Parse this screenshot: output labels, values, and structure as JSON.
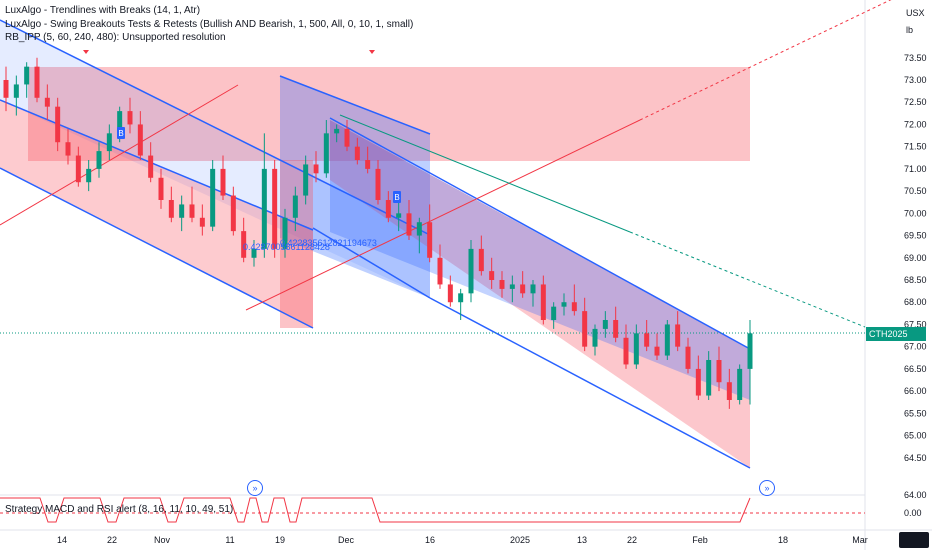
{
  "legend": {
    "line1": "LuxAlgo - Trendlines with Breaks (14, 1, Atr)",
    "line2": "LuxAlgo - Swing Breakouts Tests & Retests (Bullish AND Bearish, 1, 500, All, 0, 10, 1, small)",
    "line3": "RB_IPP (5, 60, 240, 480): Unsupported resolution",
    "line4": "Strategy MACD and RSI alert (8, 16, 11, 10, 49, 51)"
  },
  "axis": {
    "currency": "USX",
    "unit": "lb",
    "price_ticks": [
      "73.50",
      "73.00",
      "72.50",
      "72.00",
      "71.50",
      "71.00",
      "70.50",
      "70.00",
      "69.50",
      "69.00",
      "68.50",
      "68.00",
      "67.50",
      "67.00",
      "66.50",
      "66.00",
      "65.50",
      "65.00",
      "64.50"
    ],
    "lower_ticks": [
      "64.00",
      "0.00"
    ],
    "time_ticks": [
      "14",
      "22",
      "Nov",
      "11",
      "19",
      "Dec",
      "16",
      "2025",
      "13",
      "22",
      "Feb",
      "18",
      "Mar"
    ]
  },
  "price_tag": {
    "symbol": "CTH2025",
    "value": "67.45"
  },
  "annotations": {
    "value1": "0.4287005861128428",
    "value2": "0.422835612821194673",
    "marker_b1": "B",
    "marker_b2": "B"
  },
  "colors": {
    "bull": "#089981",
    "bear": "#f23645",
    "channel_blue": "#2962ff",
    "zone_red": "#f7525f",
    "trend_red": "#f23645",
    "trend_teal": "#089981"
  },
  "chart_data": {
    "type": "candlestick",
    "ylim": [
      64.0,
      73.9
    ],
    "series": [
      {
        "name": "price",
        "ohlc": [
          [
            73.0,
            73.3,
            72.3,
            72.6
          ],
          [
            72.6,
            73.1,
            72.2,
            72.9
          ],
          [
            72.9,
            73.4,
            72.6,
            73.3
          ],
          [
            73.3,
            73.5,
            72.5,
            72.6
          ],
          [
            72.6,
            72.9,
            72.1,
            72.4
          ],
          [
            72.4,
            72.6,
            71.4,
            71.6
          ],
          [
            71.6,
            71.9,
            71.1,
            71.3
          ],
          [
            71.3,
            71.5,
            70.6,
            70.7
          ],
          [
            70.7,
            71.2,
            70.5,
            71.0
          ],
          [
            71.0,
            71.6,
            70.8,
            71.4
          ],
          [
            71.4,
            72.0,
            71.2,
            71.8
          ],
          [
            71.8,
            72.4,
            71.6,
            72.3
          ],
          [
            72.3,
            72.6,
            71.8,
            72.0
          ],
          [
            72.0,
            72.3,
            71.2,
            71.3
          ],
          [
            71.3,
            71.6,
            70.7,
            70.8
          ],
          [
            70.8,
            71.0,
            70.1,
            70.3
          ],
          [
            70.3,
            70.6,
            69.8,
            69.9
          ],
          [
            69.9,
            70.4,
            69.6,
            70.2
          ],
          [
            70.2,
            70.6,
            69.8,
            69.9
          ],
          [
            69.9,
            70.2,
            69.5,
            69.7
          ],
          [
            69.7,
            71.2,
            69.6,
            71.0
          ],
          [
            71.0,
            71.3,
            70.3,
            70.4
          ],
          [
            70.4,
            70.6,
            69.5,
            69.6
          ],
          [
            69.6,
            69.9,
            68.9,
            69.0
          ],
          [
            69.0,
            69.4,
            68.8,
            69.2
          ],
          [
            69.2,
            71.8,
            69.0,
            71.0
          ],
          [
            71.0,
            71.2,
            69.0,
            69.2
          ],
          [
            69.2,
            70.1,
            69.0,
            69.9
          ],
          [
            69.9,
            70.6,
            69.6,
            70.4
          ],
          [
            70.4,
            71.3,
            70.2,
            71.1
          ],
          [
            71.1,
            71.4,
            70.7,
            70.9
          ],
          [
            70.9,
            72.1,
            70.8,
            71.8
          ],
          [
            71.8,
            72.0,
            71.6,
            71.9
          ],
          [
            71.9,
            72.1,
            71.4,
            71.5
          ],
          [
            71.5,
            71.7,
            71.1,
            71.2
          ],
          [
            71.2,
            71.5,
            70.9,
            71.0
          ],
          [
            71.0,
            71.2,
            70.2,
            70.3
          ],
          [
            70.3,
            70.5,
            69.8,
            69.9
          ],
          [
            69.9,
            70.4,
            69.6,
            70.0
          ],
          [
            70.0,
            70.3,
            69.4,
            69.5
          ],
          [
            69.5,
            69.9,
            69.1,
            69.8
          ],
          [
            69.8,
            70.2,
            68.9,
            69.0
          ],
          [
            69.0,
            69.3,
            68.3,
            68.4
          ],
          [
            68.4,
            68.6,
            67.9,
            68.0
          ],
          [
            68.0,
            68.3,
            67.6,
            68.2
          ],
          [
            68.2,
            69.4,
            68.0,
            69.2
          ],
          [
            69.2,
            69.5,
            68.6,
            68.7
          ],
          [
            68.7,
            69.0,
            68.3,
            68.5
          ],
          [
            68.5,
            68.7,
            68.1,
            68.3
          ],
          [
            68.3,
            68.6,
            68.0,
            68.4
          ],
          [
            68.4,
            68.7,
            68.1,
            68.2
          ],
          [
            68.2,
            68.5,
            67.9,
            68.4
          ],
          [
            68.4,
            68.6,
            67.5,
            67.6
          ],
          [
            67.6,
            68.0,
            67.4,
            67.9
          ],
          [
            67.9,
            68.2,
            67.7,
            68.0
          ],
          [
            68.0,
            68.4,
            67.7,
            67.8
          ],
          [
            67.8,
            68.1,
            66.9,
            67.0
          ],
          [
            67.0,
            67.5,
            66.8,
            67.4
          ],
          [
            67.4,
            67.8,
            67.2,
            67.6
          ],
          [
            67.6,
            67.9,
            67.1,
            67.2
          ],
          [
            67.2,
            67.5,
            66.5,
            66.6
          ],
          [
            66.6,
            67.5,
            66.5,
            67.3
          ],
          [
            67.3,
            67.6,
            66.9,
            67.0
          ],
          [
            67.0,
            67.3,
            66.7,
            66.8
          ],
          [
            66.8,
            67.6,
            66.7,
            67.5
          ],
          [
            67.5,
            67.8,
            66.9,
            67.0
          ],
          [
            67.0,
            67.2,
            66.4,
            66.5
          ],
          [
            66.5,
            66.8,
            65.8,
            65.9
          ],
          [
            65.9,
            66.9,
            65.8,
            66.7
          ],
          [
            66.7,
            67.0,
            66.0,
            66.2
          ],
          [
            66.2,
            66.5,
            65.6,
            65.8
          ],
          [
            65.8,
            66.6,
            65.7,
            66.5
          ],
          [
            66.5,
            67.6,
            65.7,
            67.3
          ]
        ]
      }
    ]
  }
}
